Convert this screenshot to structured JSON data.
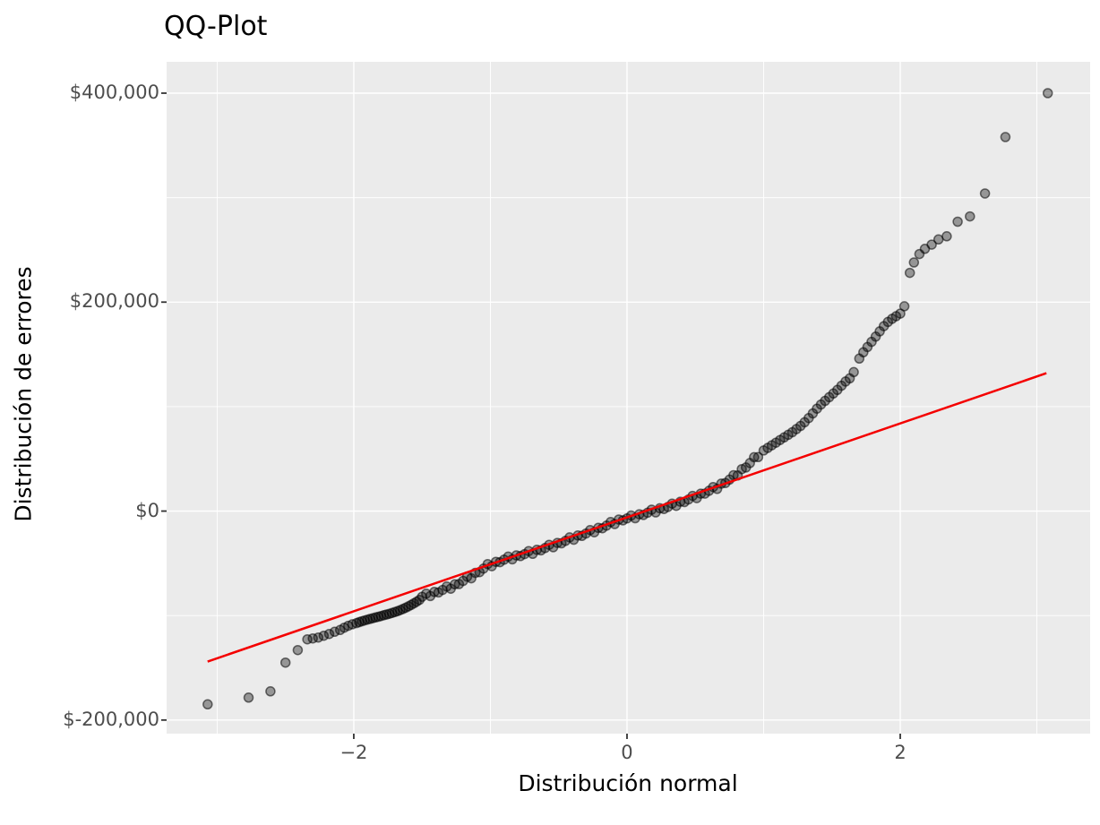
{
  "title": "QQ-Plot",
  "colors": {
    "background": "#FFFFFF",
    "panel_bg": "#EBEBEB",
    "grid_major": "#FFFFFF",
    "grid_minor": "#FFFFFF",
    "tick_mark": "#333333",
    "tick_label": "#4D4D4D",
    "title_text": "#000000",
    "axis_title_text": "#000000",
    "point_fill": "rgba(0,0,0,0.36)",
    "point_stroke": "rgba(0,0,0,0.55)",
    "qq_line": "#F40000"
  },
  "chart_data": {
    "type": "scatter",
    "title": "QQ-Plot",
    "xlabel": "Distribución normal",
    "ylabel": "Distribución de errores",
    "xlim": [
      -3.37,
      3.39
    ],
    "ylim": [
      -213000,
      430000
    ],
    "grid": "on",
    "legend_position": "none",
    "x_ticks": [
      {
        "value": -2,
        "label": "−2"
      },
      {
        "value": 0,
        "label": "0"
      },
      {
        "value": 2,
        "label": "2"
      }
    ],
    "x_minor_ticks": [
      -3,
      -1,
      1,
      3
    ],
    "y_ticks": [
      {
        "value": 400000,
        "label": "$400,000"
      },
      {
        "value": 200000,
        "label": "$200,000"
      },
      {
        "value": 0,
        "label": "$0"
      },
      {
        "value": -200000,
        "label": "$-200,000"
      }
    ],
    "y_minor_ticks": [
      300000,
      100000,
      -100000
    ],
    "qq_line": {
      "x1": -3.07,
      "y1": -144000,
      "x2": 3.07,
      "y2": 132000
    },
    "points": [
      [
        -3.07,
        -185000
      ],
      [
        -2.77,
        -178500
      ],
      [
        -2.61,
        -172500
      ],
      [
        -2.5,
        -145000
      ],
      [
        -2.41,
        -133000
      ],
      [
        -2.34,
        -122700
      ],
      [
        -2.3,
        -121900
      ],
      [
        -2.26,
        -121000
      ],
      [
        -2.22,
        -119300
      ],
      [
        -2.18,
        -117600
      ],
      [
        -2.14,
        -115500
      ],
      [
        -2.1,
        -113800
      ],
      [
        -2.07,
        -111600
      ],
      [
        -2.04,
        -109800
      ],
      [
        -2.01,
        -108300
      ],
      [
        -1.98,
        -107200
      ],
      [
        -1.96,
        -106300
      ],
      [
        -1.94,
        -105400
      ],
      [
        -1.92,
        -104600
      ],
      [
        -1.9,
        -103900
      ],
      [
        -1.88,
        -103200
      ],
      [
        -1.86,
        -102500
      ],
      [
        -1.84,
        -101800
      ],
      [
        -1.82,
        -101100
      ],
      [
        -1.8,
        -100400
      ],
      [
        -1.78,
        -99700
      ],
      [
        -1.76,
        -99000
      ],
      [
        -1.74,
        -98300
      ],
      [
        -1.72,
        -97500
      ],
      [
        -1.7,
        -96700
      ],
      [
        -1.68,
        -95800
      ],
      [
        -1.66,
        -94800
      ],
      [
        -1.64,
        -93700
      ],
      [
        -1.62,
        -92500
      ],
      [
        -1.6,
        -91200
      ],
      [
        -1.58,
        -89800
      ],
      [
        -1.56,
        -88300
      ],
      [
        -1.54,
        -86700
      ],
      [
        -1.52,
        -85000
      ],
      [
        -1.5,
        -82000
      ],
      [
        -1.47,
        -79000
      ],
      [
        -1.44,
        -81300
      ],
      [
        -1.41,
        -77400
      ],
      [
        -1.38,
        -77900
      ],
      [
        -1.35,
        -75500
      ],
      [
        -1.32,
        -72200
      ],
      [
        -1.29,
        -74300
      ],
      [
        -1.26,
        -70100
      ],
      [
        -1.23,
        -69800
      ],
      [
        -1.2,
        -66800
      ],
      [
        -1.17,
        -62800
      ],
      [
        -1.14,
        -64300
      ],
      [
        -1.11,
        -59100
      ],
      [
        -1.08,
        -58400
      ],
      [
        -1.05,
        -55000
      ],
      [
        -1.02,
        -50700
      ],
      [
        -0.99,
        -52800
      ],
      [
        -0.96,
        -48600
      ],
      [
        -0.93,
        -48900
      ],
      [
        -0.9,
        -46500
      ],
      [
        -0.87,
        -43600
      ],
      [
        -0.84,
        -46200
      ],
      [
        -0.81,
        -42400
      ],
      [
        -0.78,
        -43100
      ],
      [
        -0.75,
        -41200
      ],
      [
        -0.72,
        -38300
      ],
      [
        -0.69,
        -40900
      ],
      [
        -0.66,
        -37100
      ],
      [
        -0.63,
        -37600
      ],
      [
        -0.6,
        -35400
      ],
      [
        -0.57,
        -32300
      ],
      [
        -0.54,
        -34600
      ],
      [
        -0.51,
        -30500
      ],
      [
        -0.48,
        -30800
      ],
      [
        -0.45,
        -28500
      ],
      [
        -0.42,
        -25200
      ],
      [
        -0.39,
        -27400
      ],
      [
        -0.36,
        -23400
      ],
      [
        -0.33,
        -23800
      ],
      [
        -0.3,
        -21500
      ],
      [
        -0.27,
        -18200
      ],
      [
        -0.24,
        -20300
      ],
      [
        -0.21,
        -16100
      ],
      [
        -0.18,
        -16400
      ],
      [
        -0.15,
        -13900
      ],
      [
        -0.12,
        -10500
      ],
      [
        -0.09,
        -12400
      ],
      [
        -0.06,
        -8100
      ],
      [
        -0.03,
        -8900
      ],
      [
        0,
        -7000
      ],
      [
        0.03,
        -4200
      ],
      [
        0.06,
        -6800
      ],
      [
        0.09,
        -3000
      ],
      [
        0.12,
        -3700
      ],
      [
        0.15,
        -1600
      ],
      [
        0.18,
        1300
      ],
      [
        0.21,
        -1200
      ],
      [
        0.24,
        2700
      ],
      [
        0.27,
        2000
      ],
      [
        0.3,
        4000
      ],
      [
        0.33,
        7200
      ],
      [
        0.36,
        5000
      ],
      [
        0.39,
        9000
      ],
      [
        0.42,
        8600
      ],
      [
        0.45,
        11100
      ],
      [
        0.48,
        14500
      ],
      [
        0.51,
        12400
      ],
      [
        0.54,
        16700
      ],
      [
        0.57,
        16700
      ],
      [
        0.6,
        19400
      ],
      [
        0.63,
        23000
      ],
      [
        0.66,
        21200
      ],
      [
        0.69,
        26300
      ],
      [
        0.72,
        26900
      ],
      [
        0.75,
        30100
      ],
      [
        0.78,
        34300
      ],
      [
        0.81,
        34100
      ],
      [
        0.84,
        40200
      ],
      [
        0.87,
        41700
      ],
      [
        0.9,
        46000
      ],
      [
        0.93,
        51600
      ],
      [
        0.96,
        51700
      ],
      [
        1,
        58000
      ],
      [
        1.03,
        60500
      ],
      [
        1.06,
        63000
      ],
      [
        1.09,
        65500
      ],
      [
        1.12,
        68000
      ],
      [
        1.15,
        70500
      ],
      [
        1.18,
        73000
      ],
      [
        1.21,
        75500
      ],
      [
        1.24,
        78500
      ],
      [
        1.27,
        81500
      ],
      [
        1.3,
        85000
      ],
      [
        1.33,
        89000
      ],
      [
        1.36,
        93500
      ],
      [
        1.39,
        98000
      ],
      [
        1.42,
        102000
      ],
      [
        1.45,
        105500
      ],
      [
        1.48,
        109000
      ],
      [
        1.51,
        112500
      ],
      [
        1.54,
        116000
      ],
      [
        1.57,
        120000
      ],
      [
        1.6,
        124000
      ],
      [
        1.63,
        127000
      ],
      [
        1.66,
        133000
      ],
      [
        1.7,
        146000
      ],
      [
        1.73,
        152000
      ],
      [
        1.76,
        157000
      ],
      [
        1.79,
        162000
      ],
      [
        1.82,
        167000
      ],
      [
        1.85,
        172000
      ],
      [
        1.88,
        177000
      ],
      [
        1.91,
        181000
      ],
      [
        1.94,
        184000
      ],
      [
        1.97,
        186500
      ],
      [
        2,
        189000
      ],
      [
        2.03,
        196000
      ],
      [
        2.07,
        228000
      ],
      [
        2.1,
        238000
      ],
      [
        2.14,
        246000
      ],
      [
        2.18,
        251000
      ],
      [
        2.23,
        255000
      ],
      [
        2.28,
        260000
      ],
      [
        2.34,
        263000
      ],
      [
        2.42,
        277000
      ],
      [
        2.51,
        282000
      ],
      [
        2.62,
        304000
      ],
      [
        2.77,
        358000
      ],
      [
        3.08,
        400000
      ]
    ]
  }
}
